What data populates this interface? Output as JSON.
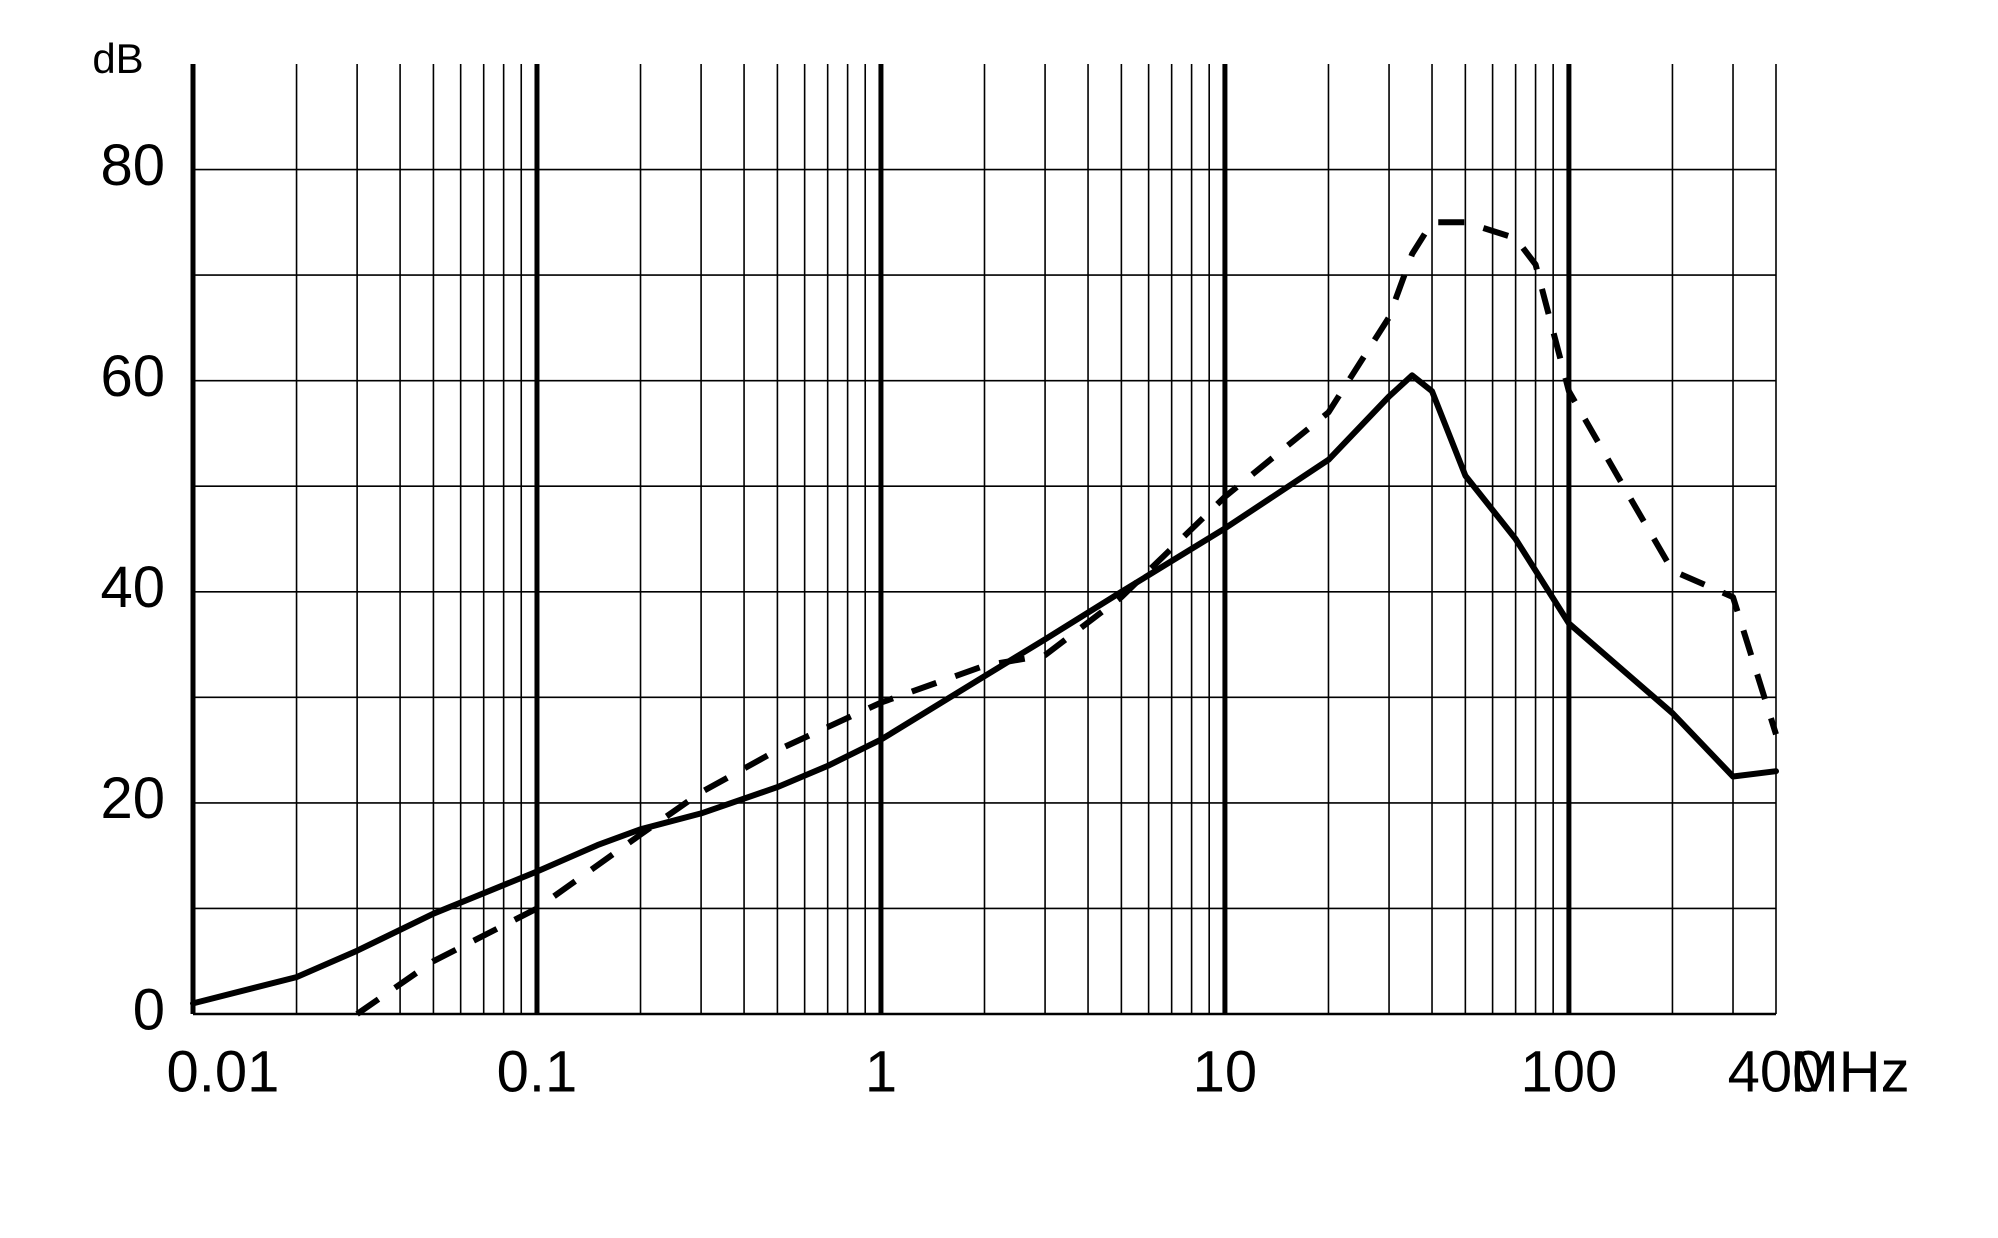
{
  "chart_data": {
    "type": "line",
    "y_label": "dB",
    "x_label": "MHz",
    "log_x": true,
    "grid": true,
    "xlim": [
      0.01,
      400
    ],
    "xticks": [
      0.01,
      0.1,
      1,
      10,
      100,
      400
    ],
    "ylim": [
      0,
      90
    ],
    "yticks": [
      0,
      20,
      40,
      60,
      80
    ],
    "yminor_ticks": [
      10,
      30,
      50,
      70
    ],
    "series": [
      {
        "color": "#000000",
        "style": "solid",
        "x": [
          0.01,
          0.02,
          0.03,
          0.05,
          0.1,
          0.15,
          0.2,
          0.3,
          0.5,
          0.7,
          1,
          2,
          3,
          5,
          10,
          20,
          30,
          35,
          40,
          50,
          70,
          100,
          200,
          300,
          400
        ],
        "values": [
          1,
          3.5,
          6,
          9.5,
          13.5,
          16,
          17.5,
          19,
          21.5,
          23.5,
          26,
          32,
          35.5,
          40,
          46,
          52.5,
          58.5,
          60.5,
          59,
          51,
          45,
          37,
          28.5,
          22.5,
          23
        ]
      },
      {
        "color": "#000000",
        "style": "dashed",
        "x": [
          0.03,
          0.05,
          0.1,
          0.2,
          0.3,
          0.5,
          1,
          2,
          3,
          5,
          10,
          20,
          30,
          35,
          40,
          50,
          70,
          80,
          100,
          150,
          200,
          300,
          400
        ],
        "values": [
          0,
          5,
          10,
          17,
          21,
          25,
          29.5,
          33,
          34,
          39.5,
          49,
          57,
          66,
          72,
          75,
          75,
          73.5,
          71,
          59,
          49,
          42,
          39.5,
          26.5
        ]
      }
    ]
  }
}
